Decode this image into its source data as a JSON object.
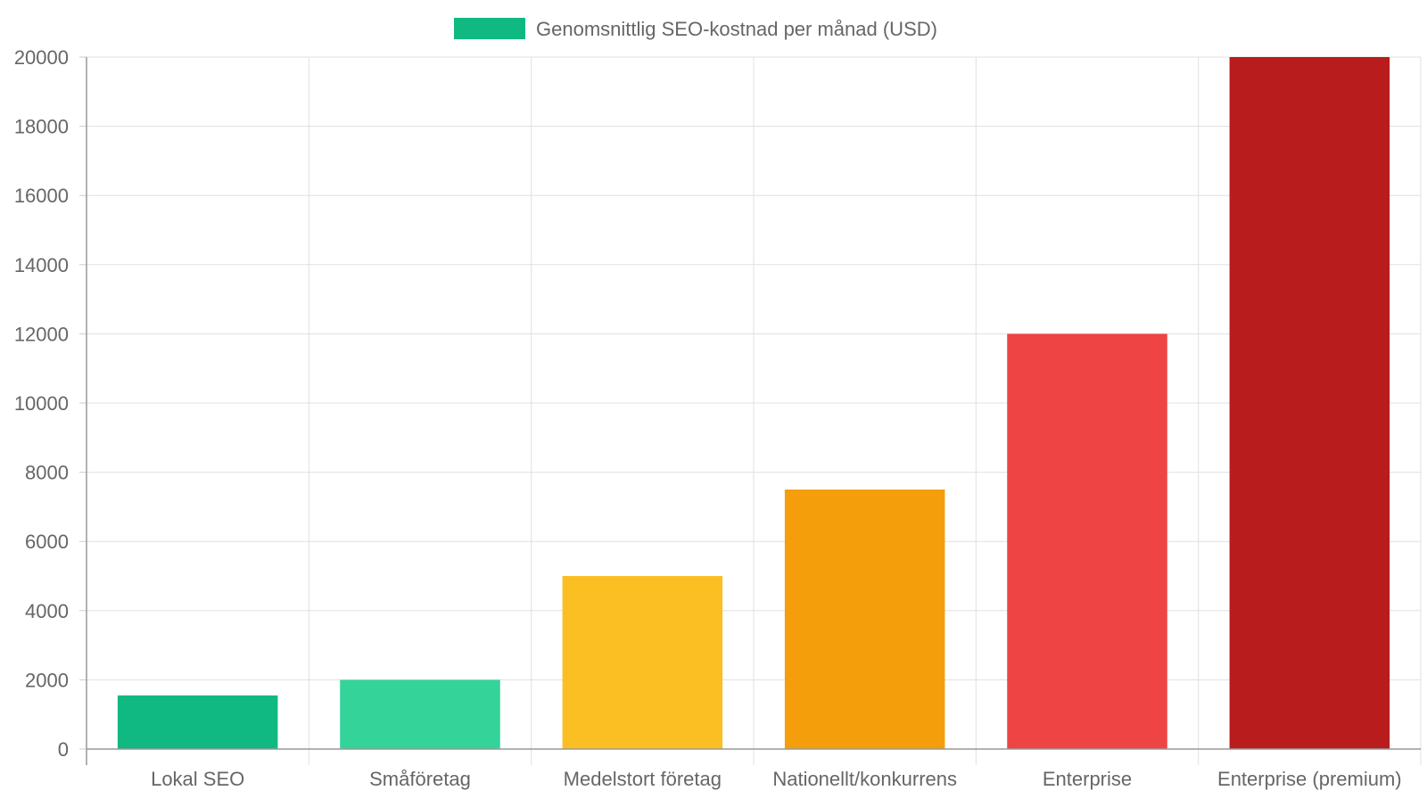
{
  "chart_data": {
    "type": "bar",
    "title": "",
    "xlabel": "",
    "ylabel": "",
    "categories": [
      "Lokal SEO",
      "Småföretag",
      "Medelstort företag",
      "Nationellt/konkurrens",
      "Enterprise",
      "Enterprise (premium)"
    ],
    "series": [
      {
        "name": "Genomsnittlig SEO-kostnad per månad (USD)",
        "values": [
          1550,
          2000,
          5000,
          7500,
          12000,
          20000
        ]
      }
    ],
    "bar_colors": [
      "#10b981",
      "#34d399",
      "#fbbf24",
      "#f59e0b",
      "#ef4444",
      "#b91c1c"
    ],
    "legend_color": "#10b981",
    "legend_position": "top-center",
    "ylim": [
      0,
      20000
    ],
    "yticks": [
      0,
      2000,
      4000,
      6000,
      8000,
      10000,
      12000,
      14000,
      16000,
      18000,
      20000
    ],
    "grid": true
  }
}
